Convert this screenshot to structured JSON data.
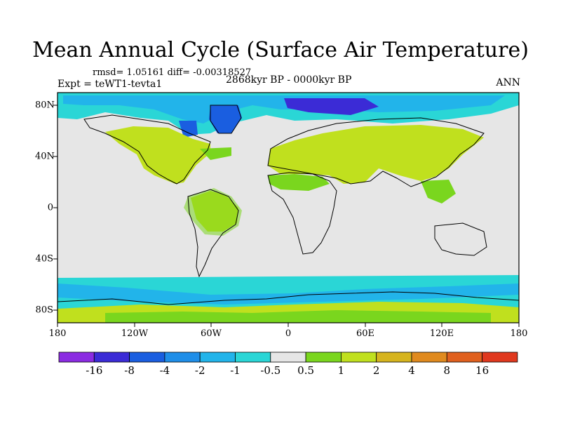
{
  "title": "Mean Annual Cycle (Surface Air Temperature)",
  "stats": "rmsd= 1.05161 diff= -0.00318527",
  "expt": "Expt = teWT1-tevta1",
  "period": "2868kyr BP - 0000kyr BP",
  "season": "ANN",
  "x_ticks": [
    "180",
    "120W",
    "60W",
    "0",
    "60E",
    "120E",
    "180"
  ],
  "y_ticks": [
    "80N",
    "40N",
    "0",
    "40S",
    "80S"
  ],
  "colorbar": {
    "labels": [
      "-16",
      "-8",
      "-4",
      "-2",
      "-1",
      "-0.5",
      "0.5",
      "1",
      "2",
      "4",
      "8",
      "16"
    ],
    "colors": [
      "#8b2be2",
      "#3b2bd6",
      "#1a5ee0",
      "#1f8ee8",
      "#22b4ea",
      "#2ad6d6",
      "#e6e6e6",
      "#7ad61e",
      "#c0e01e",
      "#d6b41e",
      "#e08a1e",
      "#e0601e",
      "#e0381e"
    ]
  }
}
